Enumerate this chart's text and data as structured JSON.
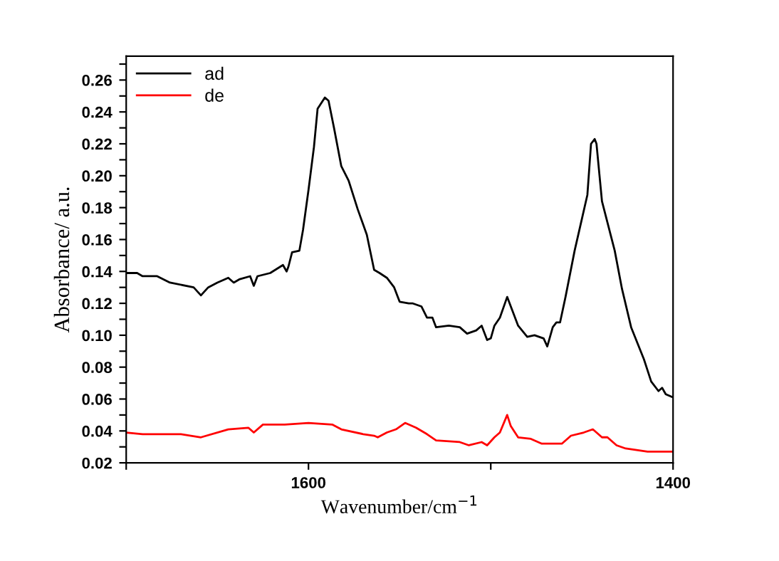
{
  "chart_data": {
    "type": "line",
    "xlabel": "Wavenumber/cm$^{−1}$",
    "ylabel": "Absorbance/ a.u.",
    "xlim": [
      1700,
      1400
    ],
    "ylim": [
      0.02,
      0.275
    ],
    "xticks": [
      {
        "value": 1700,
        "label": null
      },
      1600,
      {
        "value": 1500,
        "label": null
      },
      1400
    ],
    "yticks": [
      0.02,
      {
        "value": 0.03,
        "label": null
      },
      0.04,
      {
        "value": 0.05,
        "label": null
      },
      0.06,
      {
        "value": 0.07,
        "label": null
      },
      0.08,
      {
        "value": 0.09,
        "label": null
      },
      {
        "value": 0.1,
        "label": "0.10"
      },
      {
        "value": 0.11,
        "label": null
      },
      0.12,
      {
        "value": 0.13,
        "label": null
      },
      0.14,
      {
        "value": 0.15,
        "label": null
      },
      0.16,
      {
        "value": 0.17,
        "label": null
      },
      0.18,
      {
        "value": 0.19,
        "label": null
      },
      {
        "value": 0.2,
        "label": "0.20"
      },
      {
        "value": 0.21,
        "label": null
      },
      0.22,
      {
        "value": 0.23,
        "label": null
      },
      0.24,
      {
        "value": 0.25,
        "label": null
      },
      0.26,
      {
        "value": 0.27,
        "label": null
      }
    ],
    "grid": false,
    "legend": "top left",
    "marker": "none",
    "line_style": "solid",
    "series": [
      {
        "name": "ad",
        "color": "#000000",
        "x": [
          1700,
          1694,
          1691,
          1683,
          1676,
          1663,
          1659,
          1655,
          1650,
          1644,
          1641,
          1638,
          1632,
          1630,
          1628,
          1621,
          1614,
          1612,
          1611,
          1609,
          1605,
          1603,
          1600,
          1597,
          1595,
          1591,
          1589,
          1586,
          1582,
          1578,
          1573,
          1568,
          1564,
          1561,
          1557,
          1553,
          1550,
          1545,
          1543,
          1538,
          1535,
          1532,
          1530,
          1523,
          1517,
          1513,
          1508,
          1505,
          1502,
          1500,
          1498,
          1495,
          1491,
          1488,
          1485,
          1480,
          1476,
          1471,
          1469,
          1466,
          1464,
          1462,
          1459,
          1454,
          1450,
          1447,
          1445,
          1443,
          1442,
          1439,
          1432,
          1428,
          1423,
          1416,
          1412,
          1408,
          1406,
          1404,
          1400
        ],
        "values": [
          0.139,
          0.139,
          0.137,
          0.137,
          0.133,
          0.13,
          0.125,
          0.13,
          0.133,
          0.136,
          0.133,
          0.135,
          0.137,
          0.131,
          0.137,
          0.139,
          0.144,
          0.14,
          0.143,
          0.152,
          0.153,
          0.166,
          0.191,
          0.218,
          0.242,
          0.249,
          0.247,
          0.23,
          0.206,
          0.197,
          0.179,
          0.163,
          0.141,
          0.139,
          0.136,
          0.13,
          0.121,
          0.12,
          0.12,
          0.118,
          0.111,
          0.111,
          0.105,
          0.106,
          0.105,
          0.101,
          0.103,
          0.106,
          0.097,
          0.098,
          0.106,
          0.111,
          0.124,
          0.115,
          0.106,
          0.099,
          0.1,
          0.098,
          0.093,
          0.105,
          0.108,
          0.108,
          0.124,
          0.153,
          0.173,
          0.188,
          0.22,
          0.223,
          0.22,
          0.184,
          0.153,
          0.129,
          0.105,
          0.085,
          0.071,
          0.065,
          0.067,
          0.063,
          0.061
        ]
      },
      {
        "name": "de",
        "color": "#ff0000",
        "x": [
          1700,
          1691,
          1670,
          1659,
          1644,
          1633,
          1630,
          1625,
          1613,
          1600,
          1587,
          1582,
          1570,
          1564,
          1562,
          1557,
          1552,
          1547,
          1541,
          1535,
          1530,
          1517,
          1512,
          1505,
          1502,
          1498,
          1495,
          1491,
          1489,
          1485,
          1478,
          1472,
          1461,
          1456,
          1449,
          1444,
          1439,
          1436,
          1431,
          1426,
          1414,
          1400
        ],
        "values": [
          0.039,
          0.038,
          0.038,
          0.036,
          0.041,
          0.042,
          0.039,
          0.044,
          0.044,
          0.045,
          0.044,
          0.041,
          0.038,
          0.037,
          0.036,
          0.039,
          0.041,
          0.045,
          0.042,
          0.038,
          0.034,
          0.033,
          0.031,
          0.033,
          0.031,
          0.036,
          0.039,
          0.05,
          0.043,
          0.036,
          0.035,
          0.032,
          0.032,
          0.037,
          0.039,
          0.041,
          0.036,
          0.036,
          0.031,
          0.029,
          0.027,
          0.027
        ]
      }
    ]
  }
}
